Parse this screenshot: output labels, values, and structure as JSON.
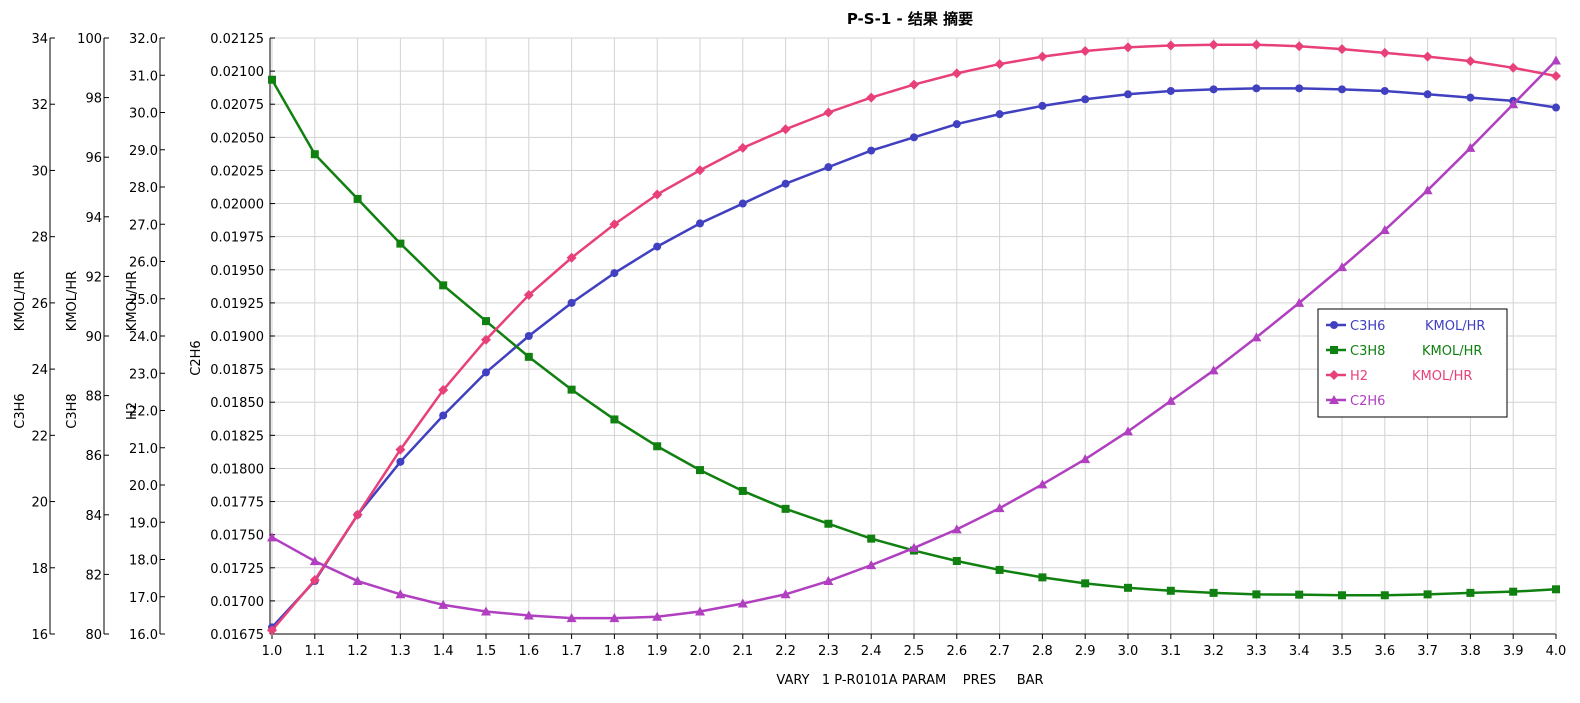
{
  "chart_data": {
    "type": "line",
    "title": "P-S-1 - 结果 摘要",
    "xlabel": "VARY   1 P-R0101A PARAM    PRES     BAR",
    "xlim": [
      1.0,
      4.0
    ],
    "x": [
      1.0,
      1.1,
      1.2,
      1.3,
      1.4,
      1.5,
      1.6,
      1.7,
      1.8,
      1.9,
      2.0,
      2.1,
      2.2,
      2.3,
      2.4,
      2.5,
      2.6,
      2.7,
      2.8,
      2.9,
      3.0,
      3.1,
      3.2,
      3.3,
      3.4,
      3.5,
      3.6,
      3.7,
      3.8,
      3.9,
      4.0
    ],
    "x_tick_labels": [
      "1.0",
      "1.1",
      "1.2",
      "1.3",
      "1.4",
      "1.5",
      "1.6",
      "1.7",
      "1.8",
      "1.9",
      "2.0",
      "2.1",
      "2.2",
      "2.3",
      "2.4",
      "2.5",
      "2.6",
      "2.7",
      "2.8",
      "2.9",
      "3.0",
      "3.1",
      "3.2",
      "3.3",
      "3.4",
      "3.5",
      "3.6",
      "3.7",
      "3.8",
      "3.9",
      "4.0"
    ],
    "grid": true,
    "legend_position": "right",
    "y_axes": [
      {
        "id": "c3h6",
        "label": "C3H6",
        "unit_label": "KMOL/HR",
        "ylim": [
          16,
          34
        ],
        "ticks": [
          "16",
          "18",
          "20",
          "22",
          "24",
          "26",
          "28",
          "30",
          "32",
          "34"
        ]
      },
      {
        "id": "c3h8",
        "label": "C3H8",
        "unit_label": "KMOL/HR",
        "ylim": [
          80,
          100
        ],
        "ticks": [
          "80",
          "82",
          "84",
          "86",
          "88",
          "90",
          "92",
          "94",
          "96",
          "98",
          "100"
        ]
      },
      {
        "id": "h2",
        "label": "H2",
        "unit_label": "KMOL/HR",
        "ylim": [
          16.0,
          32.0
        ],
        "ticks": [
          "16.0",
          "17.0",
          "18.0",
          "19.0",
          "20.0",
          "21.0",
          "22.0",
          "23.0",
          "24.0",
          "25.0",
          "26.0",
          "27.0",
          "28.0",
          "29.0",
          "30.0",
          "31.0",
          "32.0"
        ]
      },
      {
        "id": "c2h6",
        "label": "C2H6",
        "unit_label": "",
        "ylim": [
          0.01675,
          0.02125
        ],
        "ticks": [
          "0.01675",
          "0.01700",
          "0.01725",
          "0.01750",
          "0.01775",
          "0.01800",
          "0.01825",
          "0.01850",
          "0.01875",
          "0.01900",
          "0.01925",
          "0.01950",
          "0.01975",
          "0.02000",
          "0.02025",
          "0.02050",
          "0.02075",
          "0.02100",
          "0.02125"
        ]
      }
    ],
    "series": [
      {
        "name": "C3H6",
        "unit": "KMOL/HR",
        "axis": "c3h6",
        "color": "#4040c0",
        "marker": "circle",
        "values": [
          16.2,
          17.6,
          19.6,
          21.2,
          22.6,
          23.9,
          25.0,
          26.0,
          26.9,
          27.7,
          28.4,
          29.0,
          29.6,
          30.1,
          30.6,
          31.0,
          31.4,
          31.7,
          31.95,
          32.15,
          32.3,
          32.4,
          32.45,
          32.48,
          32.48,
          32.45,
          32.4,
          32.3,
          32.2,
          32.1,
          31.9
        ]
      },
      {
        "name": "C3H8",
        "unit": "KMOL/HR",
        "axis": "c3h8",
        "color": "#108010",
        "marker": "square",
        "values": [
          98.6,
          96.1,
          94.6,
          93.1,
          91.7,
          90.5,
          89.3,
          88.2,
          87.2,
          86.3,
          85.5,
          84.8,
          84.2,
          83.7,
          83.2,
          82.8,
          82.45,
          82.15,
          81.9,
          81.7,
          81.55,
          81.45,
          81.38,
          81.33,
          81.32,
          81.3,
          81.3,
          81.33,
          81.38,
          81.42,
          81.5
        ]
      },
      {
        "name": "H2",
        "unit": "KMOL/HR",
        "axis": "h2",
        "color": "#e8407a",
        "marker": "diamond",
        "values": [
          16.1,
          17.45,
          19.2,
          20.95,
          22.55,
          23.9,
          25.1,
          26.1,
          27.0,
          27.8,
          28.45,
          29.05,
          29.55,
          30.0,
          30.4,
          30.75,
          31.05,
          31.3,
          31.5,
          31.65,
          31.75,
          31.8,
          31.82,
          31.82,
          31.78,
          31.7,
          31.6,
          31.5,
          31.38,
          31.2,
          30.98
        ]
      },
      {
        "name": "C2H6",
        "unit": "",
        "axis": "c2h6",
        "color": "#b040c0",
        "marker": "triangle",
        "values": [
          0.01748,
          0.0173,
          0.01715,
          0.01705,
          0.01697,
          0.01692,
          0.01689,
          0.01687,
          0.01687,
          0.01688,
          0.01692,
          0.01698,
          0.01705,
          0.01715,
          0.01727,
          0.0174,
          0.01754,
          0.0177,
          0.01788,
          0.01807,
          0.01828,
          0.01851,
          0.01874,
          0.01899,
          0.01925,
          0.01952,
          0.0198,
          0.0201,
          0.02042,
          0.02075,
          0.02108
        ]
      }
    ]
  }
}
